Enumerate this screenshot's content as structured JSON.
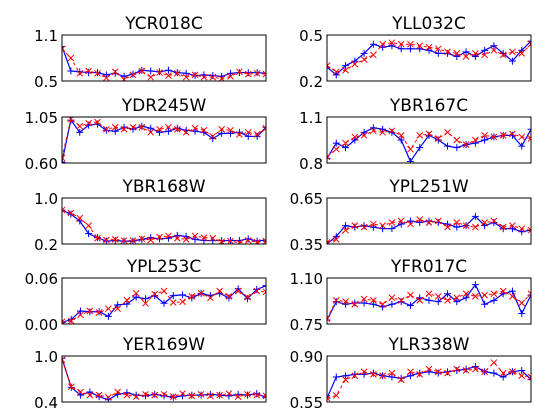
{
  "colors": {
    "line": "#0000ff",
    "marker": "#ff0000",
    "axes": "#000000"
  },
  "chart_data": [
    {
      "type": "line",
      "title": "YCR018C",
      "ylim": [
        0.5,
        1.1
      ],
      "yticks": [
        "1.1",
        "0.5"
      ],
      "series": [
        {
          "style": "blue-plus",
          "values": [
            0.95,
            0.63,
            0.62,
            0.61,
            0.61,
            0.58,
            0.6,
            0.56,
            0.59,
            0.64,
            0.63,
            0.62,
            0.64,
            0.61,
            0.6,
            0.57,
            0.58,
            0.57,
            0.56,
            0.6,
            0.61,
            0.61,
            0.61,
            0.6
          ]
        },
        {
          "style": "red-x",
          "values": [
            0.92,
            0.8,
            0.6,
            0.63,
            0.6,
            0.54,
            0.62,
            0.52,
            0.58,
            0.63,
            0.55,
            0.61,
            0.57,
            0.6,
            0.55,
            0.58,
            0.55,
            0.55,
            0.53,
            0.56,
            0.62,
            0.59,
            0.6,
            0.59
          ]
        }
      ]
    },
    {
      "type": "line",
      "title": "YLL032C",
      "ylim": [
        0.2,
        0.5
      ],
      "yticks": [
        "0.5",
        "0.2"
      ],
      "series": [
        {
          "style": "blue-plus",
          "values": [
            0.29,
            0.24,
            0.3,
            0.33,
            0.38,
            0.44,
            0.42,
            0.43,
            0.41,
            0.41,
            0.41,
            0.4,
            0.38,
            0.38,
            0.36,
            0.39,
            0.36,
            0.4,
            0.43,
            0.38,
            0.33,
            0.4,
            0.46
          ]
        },
        {
          "style": "red-x",
          "values": [
            0.3,
            0.26,
            0.27,
            0.31,
            0.34,
            0.37,
            0.44,
            0.45,
            0.44,
            0.44,
            0.43,
            0.42,
            0.41,
            0.39,
            0.38,
            0.36,
            0.38,
            0.37,
            0.4,
            0.37,
            0.39,
            0.38,
            0.44
          ]
        }
      ]
    },
    {
      "type": "line",
      "title": "YDR245W",
      "ylim": [
        0.6,
        1.05
      ],
      "yticks": [
        "1.05",
        "0.60"
      ],
      "series": [
        {
          "style": "blue-plus",
          "values": [
            0.61,
            1.02,
            0.9,
            0.97,
            0.98,
            0.92,
            0.91,
            0.95,
            0.93,
            0.96,
            0.94,
            0.9,
            0.91,
            0.94,
            0.92,
            0.91,
            0.9,
            0.84,
            0.89,
            0.89,
            0.9,
            0.86,
            0.86,
            0.95
          ]
        },
        {
          "style": "red-x",
          "values": [
            0.65,
            1.03,
            0.96,
            0.99,
            1.0,
            0.93,
            0.95,
            0.93,
            0.95,
            0.95,
            0.9,
            0.93,
            0.95,
            0.93,
            0.9,
            0.94,
            0.92,
            0.86,
            0.93,
            0.92,
            0.88,
            0.9,
            0.88,
            0.94
          ]
        }
      ]
    },
    {
      "type": "line",
      "title": "YBR167C",
      "ylim": [
        0.8,
        1.1
      ],
      "yticks": [
        "1.1",
        "0.8"
      ],
      "series": [
        {
          "style": "blue-plus",
          "values": [
            0.83,
            0.93,
            0.9,
            0.95,
            1.0,
            1.03,
            1.02,
            1.0,
            0.95,
            0.81,
            0.9,
            0.98,
            0.95,
            0.91,
            0.9,
            0.92,
            0.93,
            0.95,
            0.97,
            0.98,
            0.98,
            0.91,
            1.02
          ]
        },
        {
          "style": "red-x",
          "values": [
            0.84,
            0.89,
            0.93,
            0.97,
            0.98,
            1.01,
            1.0,
            1.01,
            0.98,
            0.89,
            0.98,
            0.99,
            0.96,
            1.0,
            0.95,
            0.92,
            0.95,
            0.98,
            0.97,
            0.98,
            0.99,
            0.97,
            0.96
          ]
        }
      ]
    },
    {
      "type": "line",
      "title": "YBR168W",
      "ylim": [
        0.2,
        1.0
      ],
      "yticks": [
        "1.0",
        "0.2"
      ],
      "series": [
        {
          "style": "blue-plus",
          "values": [
            0.79,
            0.72,
            0.6,
            0.38,
            0.31,
            0.25,
            0.26,
            0.25,
            0.25,
            0.28,
            0.31,
            0.29,
            0.3,
            0.35,
            0.33,
            0.28,
            0.26,
            0.26,
            0.26,
            0.26,
            0.26,
            0.29,
            0.25,
            0.27
          ]
        },
        {
          "style": "red-x",
          "values": [
            0.79,
            0.74,
            0.65,
            0.52,
            0.3,
            0.27,
            0.28,
            0.26,
            0.26,
            0.29,
            0.27,
            0.32,
            0.34,
            0.3,
            0.28,
            0.34,
            0.31,
            0.3,
            0.24,
            0.25,
            0.22,
            0.26,
            0.23,
            0.25
          ]
        }
      ]
    },
    {
      "type": "line",
      "title": "YPL251W",
      "ylim": [
        0.35,
        0.65
      ],
      "yticks": [
        "0.65",
        "0.35"
      ],
      "series": [
        {
          "style": "blue-plus",
          "values": [
            0.35,
            0.4,
            0.47,
            0.46,
            0.47,
            0.46,
            0.45,
            0.45,
            0.48,
            0.5,
            0.49,
            0.5,
            0.49,
            0.48,
            0.46,
            0.47,
            0.53,
            0.47,
            0.49,
            0.45,
            0.45,
            0.43,
            0.44
          ]
        },
        {
          "style": "red-x",
          "values": [
            0.36,
            0.38,
            0.44,
            0.47,
            0.46,
            0.48,
            0.47,
            0.49,
            0.5,
            0.48,
            0.51,
            0.49,
            0.5,
            0.46,
            0.49,
            0.47,
            0.46,
            0.49,
            0.5,
            0.46,
            0.47,
            0.45,
            0.44
          ]
        }
      ]
    },
    {
      "type": "line",
      "title": "YPL253C",
      "ylim": [
        0.0,
        0.06
      ],
      "yticks": [
        "0.06",
        "0.00"
      ],
      "series": [
        {
          "style": "blue-plus",
          "values": [
            0.002,
            0.006,
            0.017,
            0.016,
            0.016,
            0.01,
            0.025,
            0.026,
            0.035,
            0.033,
            0.037,
            0.027,
            0.037,
            0.038,
            0.034,
            0.04,
            0.037,
            0.04,
            0.034,
            0.046,
            0.033,
            0.045,
            0.05
          ]
        },
        {
          "style": "red-x",
          "values": [
            0.003,
            0.004,
            0.012,
            0.017,
            0.015,
            0.02,
            0.02,
            0.031,
            0.04,
            0.027,
            0.039,
            0.043,
            0.028,
            0.029,
            0.036,
            0.04,
            0.034,
            0.043,
            0.036,
            0.043,
            0.035,
            0.043,
            0.042
          ]
        }
      ]
    },
    {
      "type": "line",
      "title": "YFR017C",
      "ylim": [
        0.75,
        1.1
      ],
      "yticks": [
        "1.10",
        "0.75"
      ],
      "series": [
        {
          "style": "blue-plus",
          "values": [
            0.78,
            0.92,
            0.9,
            0.91,
            0.91,
            0.9,
            0.88,
            0.9,
            0.92,
            0.89,
            0.95,
            0.93,
            0.92,
            0.98,
            0.92,
            0.95,
            1.05,
            0.9,
            0.93,
            0.98,
            1.0,
            0.83,
            0.97
          ]
        },
        {
          "style": "red-x",
          "values": [
            0.79,
            0.93,
            0.92,
            0.9,
            0.94,
            0.93,
            0.9,
            0.95,
            0.93,
            0.97,
            0.93,
            0.98,
            0.96,
            0.93,
            0.95,
            0.98,
            0.96,
            0.97,
            0.98,
            1.0,
            0.96,
            0.91,
            0.98
          ]
        }
      ]
    },
    {
      "type": "line",
      "title": "YER169W",
      "ylim": [
        0.4,
        1.0
      ],
      "yticks": [
        "1.0",
        "0.4"
      ],
      "series": [
        {
          "style": "blue-plus",
          "values": [
            0.97,
            0.59,
            0.49,
            0.53,
            0.47,
            0.43,
            0.5,
            0.52,
            0.49,
            0.48,
            0.5,
            0.48,
            0.46,
            0.48,
            0.49,
            0.49,
            0.5,
            0.49,
            0.48,
            0.5,
            0.49,
            0.51,
            0.46
          ]
        },
        {
          "style": "red-x",
          "values": [
            0.95,
            0.6,
            0.53,
            0.49,
            0.49,
            0.46,
            0.53,
            0.49,
            0.47,
            0.5,
            0.49,
            0.5,
            0.47,
            0.51,
            0.48,
            0.5,
            0.48,
            0.49,
            0.51,
            0.47,
            0.5,
            0.49,
            0.48
          ]
        }
      ]
    },
    {
      "type": "line",
      "title": "YLR338W",
      "ylim": [
        0.55,
        0.9
      ],
      "yticks": [
        "0.90",
        "0.55"
      ],
      "series": [
        {
          "style": "blue-plus",
          "values": [
            0.58,
            0.74,
            0.75,
            0.76,
            0.76,
            0.77,
            0.75,
            0.74,
            0.73,
            0.75,
            0.77,
            0.78,
            0.77,
            0.78,
            0.79,
            0.8,
            0.82,
            0.78,
            0.77,
            0.74,
            0.78,
            0.79,
            0.72
          ]
        },
        {
          "style": "red-x",
          "values": [
            0.58,
            0.6,
            0.72,
            0.75,
            0.78,
            0.76,
            0.75,
            0.77,
            0.72,
            0.78,
            0.76,
            0.8,
            0.78,
            0.77,
            0.8,
            0.79,
            0.8,
            0.78,
            0.85,
            0.77,
            0.78,
            0.75,
            0.74
          ]
        }
      ]
    }
  ]
}
